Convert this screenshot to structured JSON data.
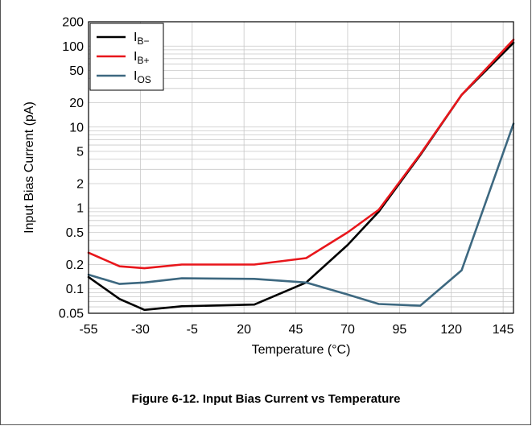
{
  "chart_data": {
    "type": "line",
    "xlabel": "Temperature (°C)",
    "ylabel": "Input Bias Current (pA)",
    "x_ticks": [
      -55,
      -30,
      -5,
      20,
      45,
      70,
      95,
      120,
      145
    ],
    "x_tick_labels": [
      "-55",
      "-30",
      "-5",
      "20",
      "45",
      "70",
      "95",
      "120",
      "145"
    ],
    "xlim": [
      -55,
      150
    ],
    "y_scale": "log",
    "ylim": [
      0.05,
      200
    ],
    "y_ticks": [
      0.05,
      0.1,
      0.2,
      0.5,
      1,
      2,
      5,
      10,
      20,
      50,
      100,
      200
    ],
    "y_tick_labels": [
      "0.05",
      "0.1",
      "0.2",
      "0.5",
      "1",
      "2",
      "5",
      "10",
      "20",
      "50",
      "100",
      "200"
    ],
    "grid": true,
    "legend_position": "top-left",
    "series": [
      {
        "name": "IB−",
        "label_main": "I",
        "label_sub": "B−",
        "color": "#000000",
        "x": [
          -55,
          -40,
          -28,
          -10,
          25,
          50,
          70,
          85,
          105,
          125,
          150
        ],
        "y": [
          0.14,
          0.075,
          0.055,
          0.061,
          0.064,
          0.12,
          0.35,
          0.9,
          4.5,
          25,
          110
        ]
      },
      {
        "name": "IB+",
        "label_main": "I",
        "label_sub": "B+",
        "color": "#e8161b",
        "x": [
          -55,
          -40,
          -28,
          -10,
          25,
          50,
          70,
          85,
          105,
          125,
          150
        ],
        "y": [
          0.28,
          0.19,
          0.18,
          0.2,
          0.2,
          0.24,
          0.5,
          0.95,
          4.6,
          25,
          120
        ]
      },
      {
        "name": "IOS",
        "label_main": "I",
        "label_sub": "OS",
        "color": "#3d6880",
        "x": [
          -55,
          -40,
          -28,
          -10,
          25,
          50,
          70,
          85,
          105,
          125,
          150
        ],
        "y": [
          0.15,
          0.115,
          0.12,
          0.135,
          0.133,
          0.12,
          0.085,
          0.065,
          0.062,
          0.17,
          11
        ]
      }
    ]
  },
  "caption": "Figure 6-12. Input Bias Current vs Temperature"
}
